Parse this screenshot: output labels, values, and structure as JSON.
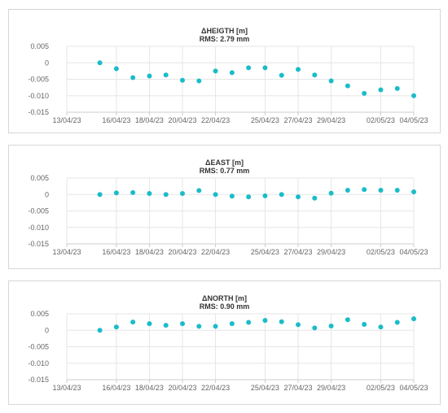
{
  "colors": {
    "point": "#1bbcc9",
    "grid": "#e6e6e6",
    "axis": "#cccccc",
    "text": "#666666",
    "title": "#333333"
  },
  "shared_axis": {
    "y_ticks": [
      0.005,
      0,
      -0.005,
      -0.01,
      -0.015
    ],
    "y_tick_labels": [
      "0.005",
      "0",
      "-0.005",
      "-0.010",
      "-0.015"
    ],
    "x_tick_labels": [
      "13/04/23",
      "16/04/23",
      "18/04/23",
      "20/04/23",
      "22/04/23",
      "25/04/23",
      "27/04/23",
      "29/04/23",
      "02/05/23",
      "04/05/23"
    ],
    "x_tick_dates": [
      "2023-04-13",
      "2023-04-16",
      "2023-04-18",
      "2023-04-20",
      "2023-04-22",
      "2023-04-25",
      "2023-04-27",
      "2023-04-29",
      "2023-05-02",
      "2023-05-04"
    ]
  },
  "chart_data": [
    {
      "type": "scatter",
      "title": "ΔHEIGTH [m]",
      "subtitle": "RMS: 2.79 mm",
      "ylim": [
        -0.015,
        0.005
      ],
      "x": [
        "2023-04-15",
        "2023-04-16",
        "2023-04-17",
        "2023-04-18",
        "2023-04-19",
        "2023-04-20",
        "2023-04-21",
        "2023-04-22",
        "2023-04-23",
        "2023-04-24",
        "2023-04-25",
        "2023-04-26",
        "2023-04-27",
        "2023-04-28",
        "2023-04-29",
        "2023-04-30",
        "2023-05-01",
        "2023-05-02",
        "2023-05-03",
        "2023-05-04"
      ],
      "y": [
        0.0,
        -0.0018,
        -0.0045,
        -0.004,
        -0.0037,
        -0.0053,
        -0.0055,
        -0.0025,
        -0.003,
        -0.0015,
        -0.0015,
        -0.0038,
        -0.002,
        -0.0037,
        -0.0055,
        -0.007,
        -0.0093,
        -0.0082,
        -0.0078,
        -0.01
      ]
    },
    {
      "type": "scatter",
      "title": "ΔEAST [m]",
      "subtitle": "RMS: 0.77 mm",
      "ylim": [
        -0.015,
        0.005
      ],
      "x": [
        "2023-04-15",
        "2023-04-16",
        "2023-04-17",
        "2023-04-18",
        "2023-04-19",
        "2023-04-20",
        "2023-04-21",
        "2023-04-22",
        "2023-04-23",
        "2023-04-24",
        "2023-04-25",
        "2023-04-26",
        "2023-04-27",
        "2023-04-28",
        "2023-04-29",
        "2023-04-30",
        "2023-05-01",
        "2023-05-02",
        "2023-05-03",
        "2023-05-04"
      ],
      "y": [
        0.0,
        0.0005,
        0.0006,
        0.0003,
        0.0,
        0.0003,
        0.0012,
        0.0,
        -0.0005,
        -0.0007,
        -0.0004,
        0.0,
        -0.0007,
        -0.0011,
        0.0004,
        0.0013,
        0.0015,
        0.0013,
        0.0013,
        0.0008
      ]
    },
    {
      "type": "scatter",
      "title": "ΔNORTH [m]",
      "subtitle": "RMS: 0.90 mm",
      "ylim": [
        -0.015,
        0.005
      ],
      "x": [
        "2023-04-15",
        "2023-04-16",
        "2023-04-17",
        "2023-04-18",
        "2023-04-19",
        "2023-04-20",
        "2023-04-21",
        "2023-04-22",
        "2023-04-23",
        "2023-04-24",
        "2023-04-25",
        "2023-04-26",
        "2023-04-27",
        "2023-04-28",
        "2023-04-29",
        "2023-04-30",
        "2023-05-01",
        "2023-05-02",
        "2023-05-03",
        "2023-05-04"
      ],
      "y": [
        0.0,
        0.001,
        0.0025,
        0.002,
        0.0015,
        0.002,
        0.0012,
        0.0012,
        0.002,
        0.0024,
        0.003,
        0.0026,
        0.0017,
        0.0007,
        0.0013,
        0.0032,
        0.0018,
        0.001,
        0.0024,
        0.0035
      ]
    }
  ]
}
